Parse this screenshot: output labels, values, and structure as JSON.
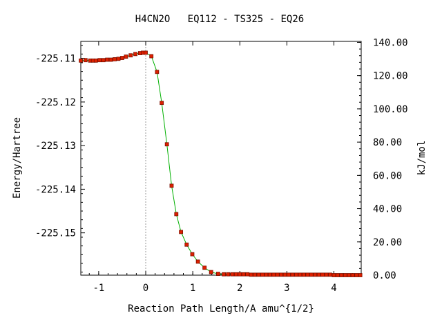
{
  "chart_data": {
    "type": "line",
    "title": "H4CN2O   EQ112 - TS325 - EQ26",
    "xlabel": "Reaction Path Length/A amu^{1/2}",
    "ylabel": "Energy/Hartree",
    "y2label": "kJ/mol",
    "xlim": [
      -1.38,
      4.58
    ],
    "ylim": [
      -225.1597,
      -225.1061
    ],
    "y2lim": [
      0.0,
      140.6
    ],
    "x_ticks": [
      -1,
      0,
      1,
      2,
      3,
      4
    ],
    "x_tick_labels": [
      "-1",
      "0",
      "1",
      "2",
      "3",
      "4"
    ],
    "y_ticks": [
      -225.11,
      -225.12,
      -225.13,
      -225.14,
      -225.15
    ],
    "y_tick_labels": [
      "-225.11",
      "-225.12",
      "-225.13",
      "-225.14",
      "-225.15"
    ],
    "y2_ticks": [
      0,
      20,
      40,
      60,
      80,
      100,
      120,
      140
    ],
    "y2_tick_labels": [
      "0.00",
      "20.00",
      "40.00",
      "60.00",
      "80.00",
      "100.00",
      "120.00",
      "140.00"
    ],
    "ts_marker_x": 0,
    "grid": false,
    "colors": {
      "line": "#00b000",
      "point": "#dd2000",
      "point_edge": "#7a1000",
      "ts_line": "#999999"
    },
    "series": [
      {
        "x": [
          -1.38,
          -1.28,
          -1.18,
          -1.12,
          -1.06,
          -0.98,
          -0.9,
          -0.82,
          -0.74,
          -0.66,
          -0.58,
          -0.5,
          -0.42,
          -0.32,
          -0.22,
          -0.12,
          -0.06,
          0.0,
          0.12,
          0.24,
          0.34,
          0.45,
          0.55,
          0.65,
          0.75,
          0.87,
          0.99,
          1.11,
          1.25,
          1.39,
          1.54,
          1.66,
          1.75,
          1.84,
          1.92,
          2.0,
          2.08,
          2.16,
          2.24,
          2.32,
          2.4,
          2.48,
          2.56,
          2.64,
          2.72,
          2.8,
          2.88,
          2.96,
          3.04,
          3.12,
          3.2,
          3.28,
          3.36,
          3.44,
          3.52,
          3.6,
          3.68,
          3.76,
          3.84,
          3.92,
          4.0,
          4.08,
          4.16,
          4.24,
          4.32,
          4.4,
          4.48,
          4.56
        ],
        "y": [
          -225.1105,
          -225.1104,
          -225.1105,
          -225.1105,
          -225.1105,
          -225.1104,
          -225.1104,
          -225.1103,
          -225.1103,
          -225.1102,
          -225.1101,
          -225.1099,
          -225.1096,
          -225.1093,
          -225.109,
          -225.1088,
          -225.1087,
          -225.1087,
          -225.1095,
          -225.1131,
          -225.1202,
          -225.1297,
          -225.1392,
          -225.1457,
          -225.1498,
          -225.1527,
          -225.1549,
          -225.1566,
          -225.158,
          -225.159,
          -225.1594,
          -225.1595,
          -225.1595,
          -225.1595,
          -225.1595,
          -225.1595,
          -225.1595,
          -225.1595,
          -225.1596,
          -225.1596,
          -225.1596,
          -225.1596,
          -225.1596,
          -225.1596,
          -225.1596,
          -225.1596,
          -225.1596,
          -225.1596,
          -225.1596,
          -225.1596,
          -225.1596,
          -225.1596,
          -225.1596,
          -225.1596,
          -225.1596,
          -225.1596,
          -225.1596,
          -225.1596,
          -225.1596,
          -225.1596,
          -225.1597,
          -225.1597,
          -225.1597,
          -225.1597,
          -225.1597,
          -225.1597,
          -225.1597,
          -225.1597
        ]
      }
    ]
  }
}
